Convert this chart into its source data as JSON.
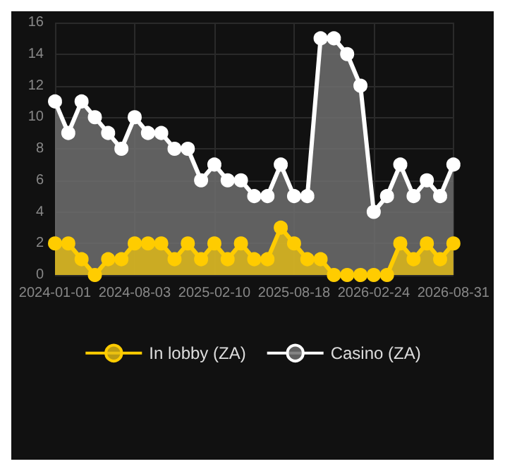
{
  "chart_data": {
    "type": "area",
    "categories": [
      "2024-01-01",
      null,
      null,
      null,
      null,
      null,
      "2024-08-03",
      null,
      null,
      null,
      null,
      null,
      "2025-02-10",
      null,
      null,
      null,
      null,
      null,
      "2025-08-18",
      null,
      null,
      null,
      null,
      null,
      "2026-02-24",
      null,
      null,
      null,
      null,
      null,
      "2026-08-31"
    ],
    "series": [
      {
        "name": "In lobby (ZA)",
        "color": "#ffcc00",
        "values": [
          2,
          2,
          1,
          0,
          1,
          1,
          2,
          2,
          2,
          1,
          2,
          1,
          2,
          1,
          2,
          1,
          1,
          3,
          2,
          1,
          1,
          0,
          0,
          0,
          0,
          0,
          2,
          1,
          2,
          1,
          2
        ]
      },
      {
        "name": "Casino (ZA)",
        "color": "#ffffff",
        "values": [
          11,
          9,
          11,
          10,
          9,
          8,
          10,
          9,
          9,
          8,
          8,
          6,
          7,
          6,
          6,
          5,
          5,
          7,
          5,
          5,
          15,
          15,
          14,
          12,
          4,
          5,
          7,
          5,
          6,
          5,
          7
        ]
      }
    ],
    "ylim": [
      0,
      16
    ],
    "yticks": [
      0,
      2,
      4,
      6,
      8,
      10,
      12,
      14,
      16
    ],
    "grid": true,
    "legend": "bottom",
    "marker": "circle"
  }
}
